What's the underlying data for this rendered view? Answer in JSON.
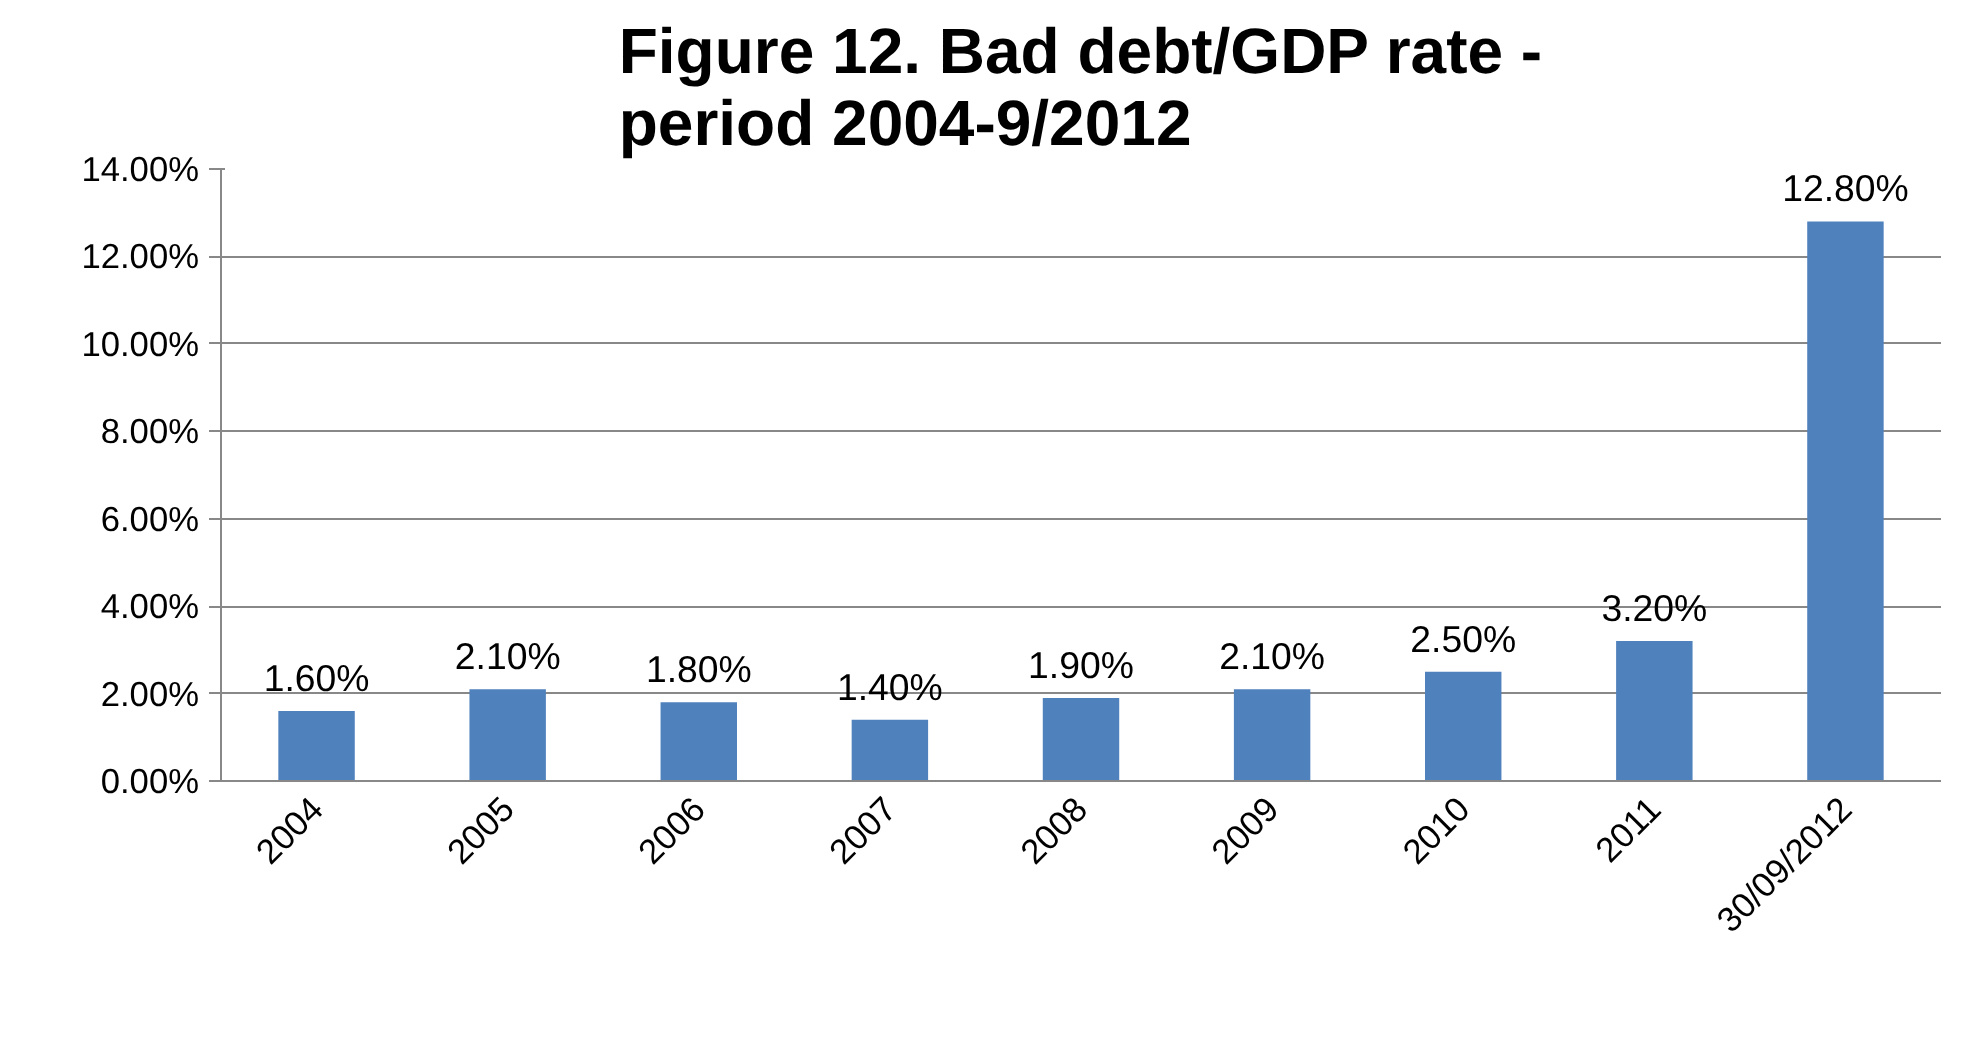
{
  "chart_data": {
    "type": "bar",
    "title": "Figure 12. Bad debt/GDP rate - period 2004-9/2012",
    "categories": [
      "2004",
      "2005",
      "2006",
      "2007",
      "2008",
      "2009",
      "2010",
      "2011",
      "30/09/2012"
    ],
    "values": [
      1.6,
      2.1,
      1.8,
      1.4,
      1.9,
      2.1,
      2.5,
      3.2,
      12.8
    ],
    "value_labels": [
      "1.60%",
      "2.10%",
      "1.80%",
      "1.40%",
      "1.90%",
      "2.10%",
      "2.50%",
      "3.20%",
      "12.80%"
    ],
    "color": "#4f81bd",
    "ylim": [
      0,
      14
    ],
    "yticks": [
      {
        "value": 0,
        "label": "0.00%"
      },
      {
        "value": 2,
        "label": "2.00%"
      },
      {
        "value": 4,
        "label": "4.00%"
      },
      {
        "value": 6,
        "label": "6.00%"
      },
      {
        "value": 8,
        "label": "8.00%"
      },
      {
        "value": 10,
        "label": "10.00%"
      },
      {
        "value": 12,
        "label": "12.00%"
      },
      {
        "value": 14,
        "label": "14.00%"
      }
    ],
    "grid": "y"
  }
}
